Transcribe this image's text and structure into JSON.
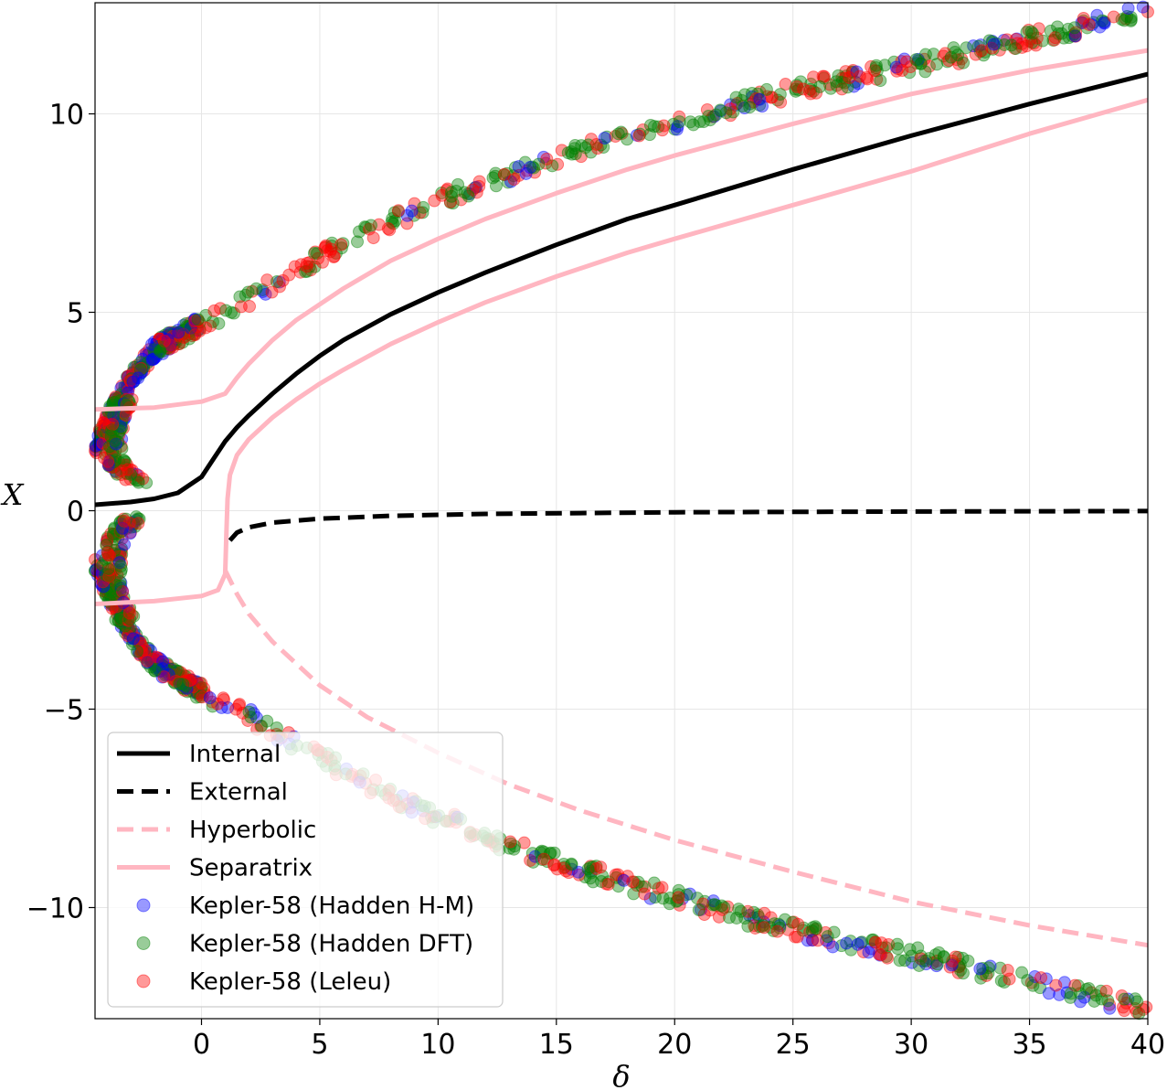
{
  "chart_data": {
    "type": "scatter",
    "xlabel": "δ",
    "ylabel": "X",
    "xlim": [
      -4.5,
      40
    ],
    "ylim": [
      -12.8,
      12.8
    ],
    "x_ticks": [
      0,
      5,
      10,
      15,
      20,
      25,
      30,
      35,
      40
    ],
    "x_tick_labels": [
      "0",
      "5",
      "10",
      "15",
      "20",
      "25",
      "30",
      "35",
      "40"
    ],
    "y_ticks": [
      -10,
      -5,
      0,
      5,
      10
    ],
    "y_tick_labels": [
      "−10",
      "−5",
      "0",
      "5",
      "10"
    ],
    "grid": true,
    "legend_placement": "lower-left",
    "lines": [
      {
        "name": "Internal",
        "color": "#000000",
        "dash": "solid",
        "x": [
          -4.5,
          -3,
          -2,
          -1,
          0,
          0.5,
          1,
          1.5,
          2,
          3,
          4,
          5,
          6,
          8,
          10,
          12,
          15,
          18,
          20,
          25,
          30,
          35,
          40
        ],
        "y": [
          0.15,
          0.22,
          0.3,
          0.45,
          0.85,
          1.3,
          1.75,
          2.1,
          2.4,
          2.95,
          3.45,
          3.9,
          4.3,
          4.95,
          5.5,
          6.0,
          6.7,
          7.35,
          7.7,
          8.6,
          9.45,
          10.25,
          11.0
        ]
      },
      {
        "name": "External",
        "color": "#000000",
        "dash": "dashed",
        "x": [
          1.2,
          1.5,
          2,
          3,
          5,
          8,
          12,
          20,
          30,
          40
        ],
        "y": [
          -0.75,
          -0.55,
          -0.42,
          -0.3,
          -0.2,
          -0.13,
          -0.08,
          -0.04,
          -0.02,
          -0.01
        ]
      },
      {
        "name": "Hyperbolic",
        "color": "#ffb6c1",
        "dash": "dashed",
        "x": [
          1.0,
          1.5,
          2,
          3,
          5,
          7,
          10,
          13,
          16,
          20,
          25,
          30,
          35,
          40
        ],
        "y": [
          -1.5,
          -2.1,
          -2.6,
          -3.3,
          -4.4,
          -5.2,
          -6.1,
          -6.9,
          -7.55,
          -8.3,
          -9.1,
          -9.85,
          -10.45,
          -10.95
        ]
      },
      {
        "name": "Separatrix",
        "color": "#ffb6c1",
        "dash": "solid",
        "x": [
          -4.5,
          -2,
          0,
          1,
          1.5,
          2,
          3,
          4,
          5,
          6,
          8,
          10,
          12,
          15,
          18,
          20,
          25,
          30,
          35,
          40
        ],
        "y": [
          2.55,
          2.6,
          2.75,
          2.95,
          3.35,
          3.7,
          4.3,
          4.8,
          5.2,
          5.6,
          6.3,
          6.85,
          7.35,
          8.0,
          8.6,
          8.95,
          9.75,
          10.5,
          11.1,
          11.6
        ]
      },
      {
        "name": "Separatrix",
        "color": "#ffb6c1",
        "dash": "solid",
        "x": [
          -4.5,
          -2,
          0,
          0.7,
          1.0,
          1.05,
          1.1,
          1.2,
          1.5,
          2,
          3,
          4,
          5,
          6,
          8,
          10,
          12,
          15,
          18,
          20,
          25,
          30,
          35,
          40
        ],
        "y": [
          -2.35,
          -2.28,
          -2.15,
          -2.0,
          -1.6,
          -0.6,
          0.3,
          0.9,
          1.4,
          1.8,
          2.35,
          2.8,
          3.2,
          3.55,
          4.2,
          4.75,
          5.25,
          5.9,
          6.5,
          6.85,
          7.7,
          8.55,
          9.5,
          10.35
        ]
      }
    ],
    "series": [
      {
        "name": "Kepler-58 (Hadden H-M)",
        "color": "#0000ff"
      },
      {
        "name": "Kepler-58 (Hadden DFT)",
        "color": "#008000"
      },
      {
        "name": "Kepler-58 (Leleu)",
        "color": "#ff0000"
      }
    ],
    "scatter_branches": {
      "upper": {
        "x": [
          -4.5,
          -3.5,
          -3,
          -2.5,
          -2,
          -1,
          0,
          1,
          2,
          3,
          5,
          7,
          10,
          13,
          16,
          20,
          25,
          30,
          35,
          40
        ],
        "y": [
          1.6,
          2.8,
          3.3,
          3.7,
          4.05,
          4.4,
          4.7,
          5.0,
          5.3,
          5.7,
          6.4,
          7.0,
          7.8,
          8.5,
          9.1,
          9.8,
          10.6,
          11.2,
          11.9,
          12.6
        ]
      },
      "lower": {
        "x": [
          -4.5,
          -3.5,
          -3,
          -2.5,
          -2,
          -1,
          0,
          1,
          2,
          3,
          5,
          7,
          10,
          13,
          16,
          20,
          25,
          30,
          35,
          40
        ],
        "y": [
          -1.4,
          -2.6,
          -3.1,
          -3.5,
          -3.85,
          -4.25,
          -4.55,
          -4.9,
          -5.2,
          -5.55,
          -6.2,
          -6.9,
          -7.7,
          -8.45,
          -9.05,
          -9.75,
          -10.55,
          -11.2,
          -11.85,
          -12.55
        ]
      }
    }
  },
  "legend": {
    "items": [
      {
        "label": "Internal",
        "kind": "line",
        "color": "#000000",
        "dash": "solid"
      },
      {
        "label": "External",
        "kind": "line",
        "color": "#000000",
        "dash": "dashed"
      },
      {
        "label": "Hyperbolic",
        "kind": "line",
        "color": "#ffb6c1",
        "dash": "dashed"
      },
      {
        "label": "Separatrix",
        "kind": "line",
        "color": "#ffb6c1",
        "dash": "solid"
      },
      {
        "label": "Kepler-58 (Hadden H-M)",
        "kind": "marker",
        "color": "#0000ff"
      },
      {
        "label": "Kepler-58 (Hadden DFT)",
        "kind": "marker",
        "color": "#008000"
      },
      {
        "label": "Kepler-58 (Leleu)",
        "kind": "marker",
        "color": "#ff0000"
      }
    ]
  }
}
